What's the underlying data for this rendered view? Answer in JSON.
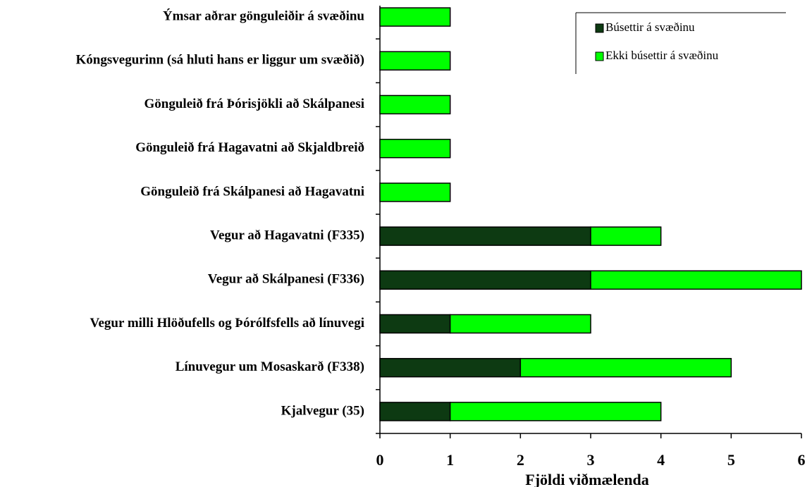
{
  "chart_data": {
    "type": "stacked-bar-horizontal",
    "xlabel": "Fjöldi viðmælenda",
    "categories": [
      "Ýmsar aðrar gönguleiðir á svæðinu",
      "Kóngsvegurinn (sá hluti hans er liggur um svæðið)",
      "Gönguleið frá Þórisjökli að Skálpanesi",
      "Gönguleið frá Hagavatni að Skjaldbreið",
      "Gönguleið frá Skálpanesi að Hagavatni",
      "Vegur að Hagavatni (F335)",
      "Vegur að Skálpanesi (F336)",
      "Vegur milli Hlöðufells og Þórólfsfells að línuvegi",
      "Línuvegur um Mosaskarð (F338)",
      "Kjalvegur (35)"
    ],
    "series": [
      {
        "name": "Búsettir á svæðinu",
        "color": "#0d3a12",
        "values": [
          0,
          0,
          0,
          0,
          0,
          3,
          3,
          1,
          2,
          1
        ]
      },
      {
        "name": "Ekki búsettir á svæðinu",
        "color": "#00ff00",
        "values": [
          1,
          1,
          1,
          1,
          1,
          1,
          3,
          2,
          3,
          3
        ]
      }
    ],
    "xlim": [
      0,
      6
    ],
    "xticks": [
      0,
      1,
      2,
      3,
      4,
      5,
      6
    ],
    "legend": "upper right"
  }
}
